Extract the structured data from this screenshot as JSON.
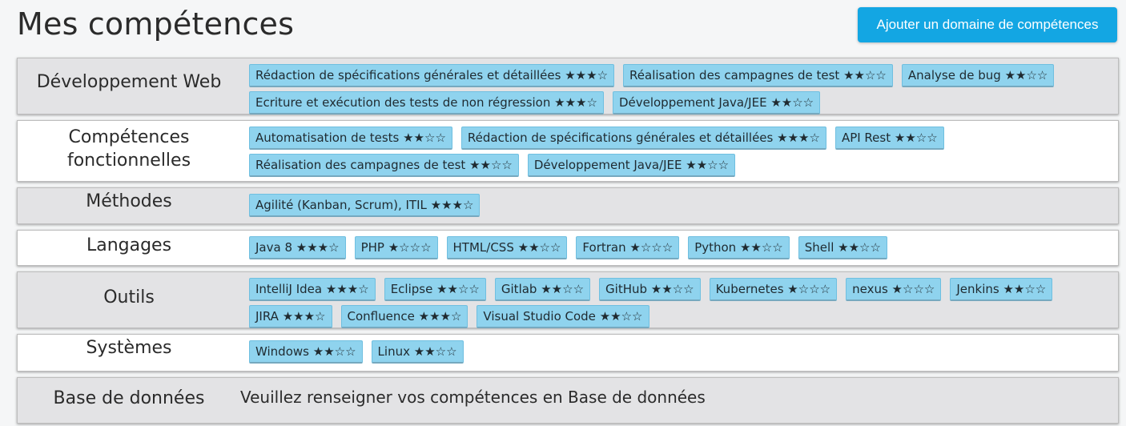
{
  "header": {
    "title": "Mes compétences",
    "add_button_label": "Ajouter un domaine de compétences"
  },
  "colors": {
    "accent": "#13a6e3",
    "skill_chip": "#8fd3ee",
    "row_alt": "#e3e3e5"
  },
  "domains": [
    {
      "label": "Développement Web",
      "skills": [
        {
          "name": "Rédaction de spécifications générales et détaillées",
          "stars": "★★★☆"
        },
        {
          "name": "Réalisation des campagnes de test",
          "stars": "★★☆☆"
        },
        {
          "name": "Analyse de bug",
          "stars": "★★☆☆"
        },
        {
          "name": "Ecriture et exécution des tests de non régression",
          "stars": "★★★☆"
        },
        {
          "name": "Développement Java/JEE",
          "stars": "★★☆☆"
        }
      ]
    },
    {
      "label": "Compétences fonctionnelles",
      "skills": [
        {
          "name": "Automatisation de tests",
          "stars": "★★☆☆"
        },
        {
          "name": "Rédaction de spécifications générales et détaillées",
          "stars": "★★★☆"
        },
        {
          "name": "API Rest",
          "stars": "★★☆☆"
        },
        {
          "name": "Réalisation des campagnes de test",
          "stars": "★★☆☆"
        },
        {
          "name": "Développement Java/JEE",
          "stars": "★★☆☆"
        }
      ]
    },
    {
      "label": "Méthodes",
      "skills": [
        {
          "name": "Agilité (Kanban, Scrum), ITIL ",
          "stars": "★★★☆"
        }
      ]
    },
    {
      "label": "Langages",
      "skills": [
        {
          "name": "Java 8",
          "stars": "★★★☆"
        },
        {
          "name": "PHP",
          "stars": "★☆☆☆"
        },
        {
          "name": "HTML/CSS",
          "stars": "★★☆☆"
        },
        {
          "name": "Fortran",
          "stars": "★☆☆☆"
        },
        {
          "name": "Python",
          "stars": "★★☆☆"
        },
        {
          "name": "Shell",
          "stars": "★★☆☆"
        }
      ]
    },
    {
      "label": "Outils",
      "skills": [
        {
          "name": "IntelliJ Idea",
          "stars": "★★★☆"
        },
        {
          "name": "Eclipse",
          "stars": "★★☆☆"
        },
        {
          "name": "Gitlab",
          "stars": "★★☆☆"
        },
        {
          "name": "GitHub",
          "stars": "★★☆☆"
        },
        {
          "name": "Kubernetes",
          "stars": "★☆☆☆"
        },
        {
          "name": "nexus",
          "stars": "★☆☆☆"
        },
        {
          "name": "Jenkins",
          "stars": "★★☆☆"
        },
        {
          "name": "JIRA",
          "stars": "★★★☆"
        },
        {
          "name": "Confluence",
          "stars": "★★★☆"
        },
        {
          "name": "Visual Studio Code",
          "stars": "★★☆☆"
        }
      ]
    },
    {
      "label": "Systèmes",
      "skills": [
        {
          "name": "Windows",
          "stars": "★★☆☆"
        },
        {
          "name": "Linux",
          "stars": "★★☆☆"
        }
      ]
    },
    {
      "label": "Base de données",
      "skills": [],
      "empty_message": "Veuillez renseigner vos compétences en Base de données"
    }
  ]
}
